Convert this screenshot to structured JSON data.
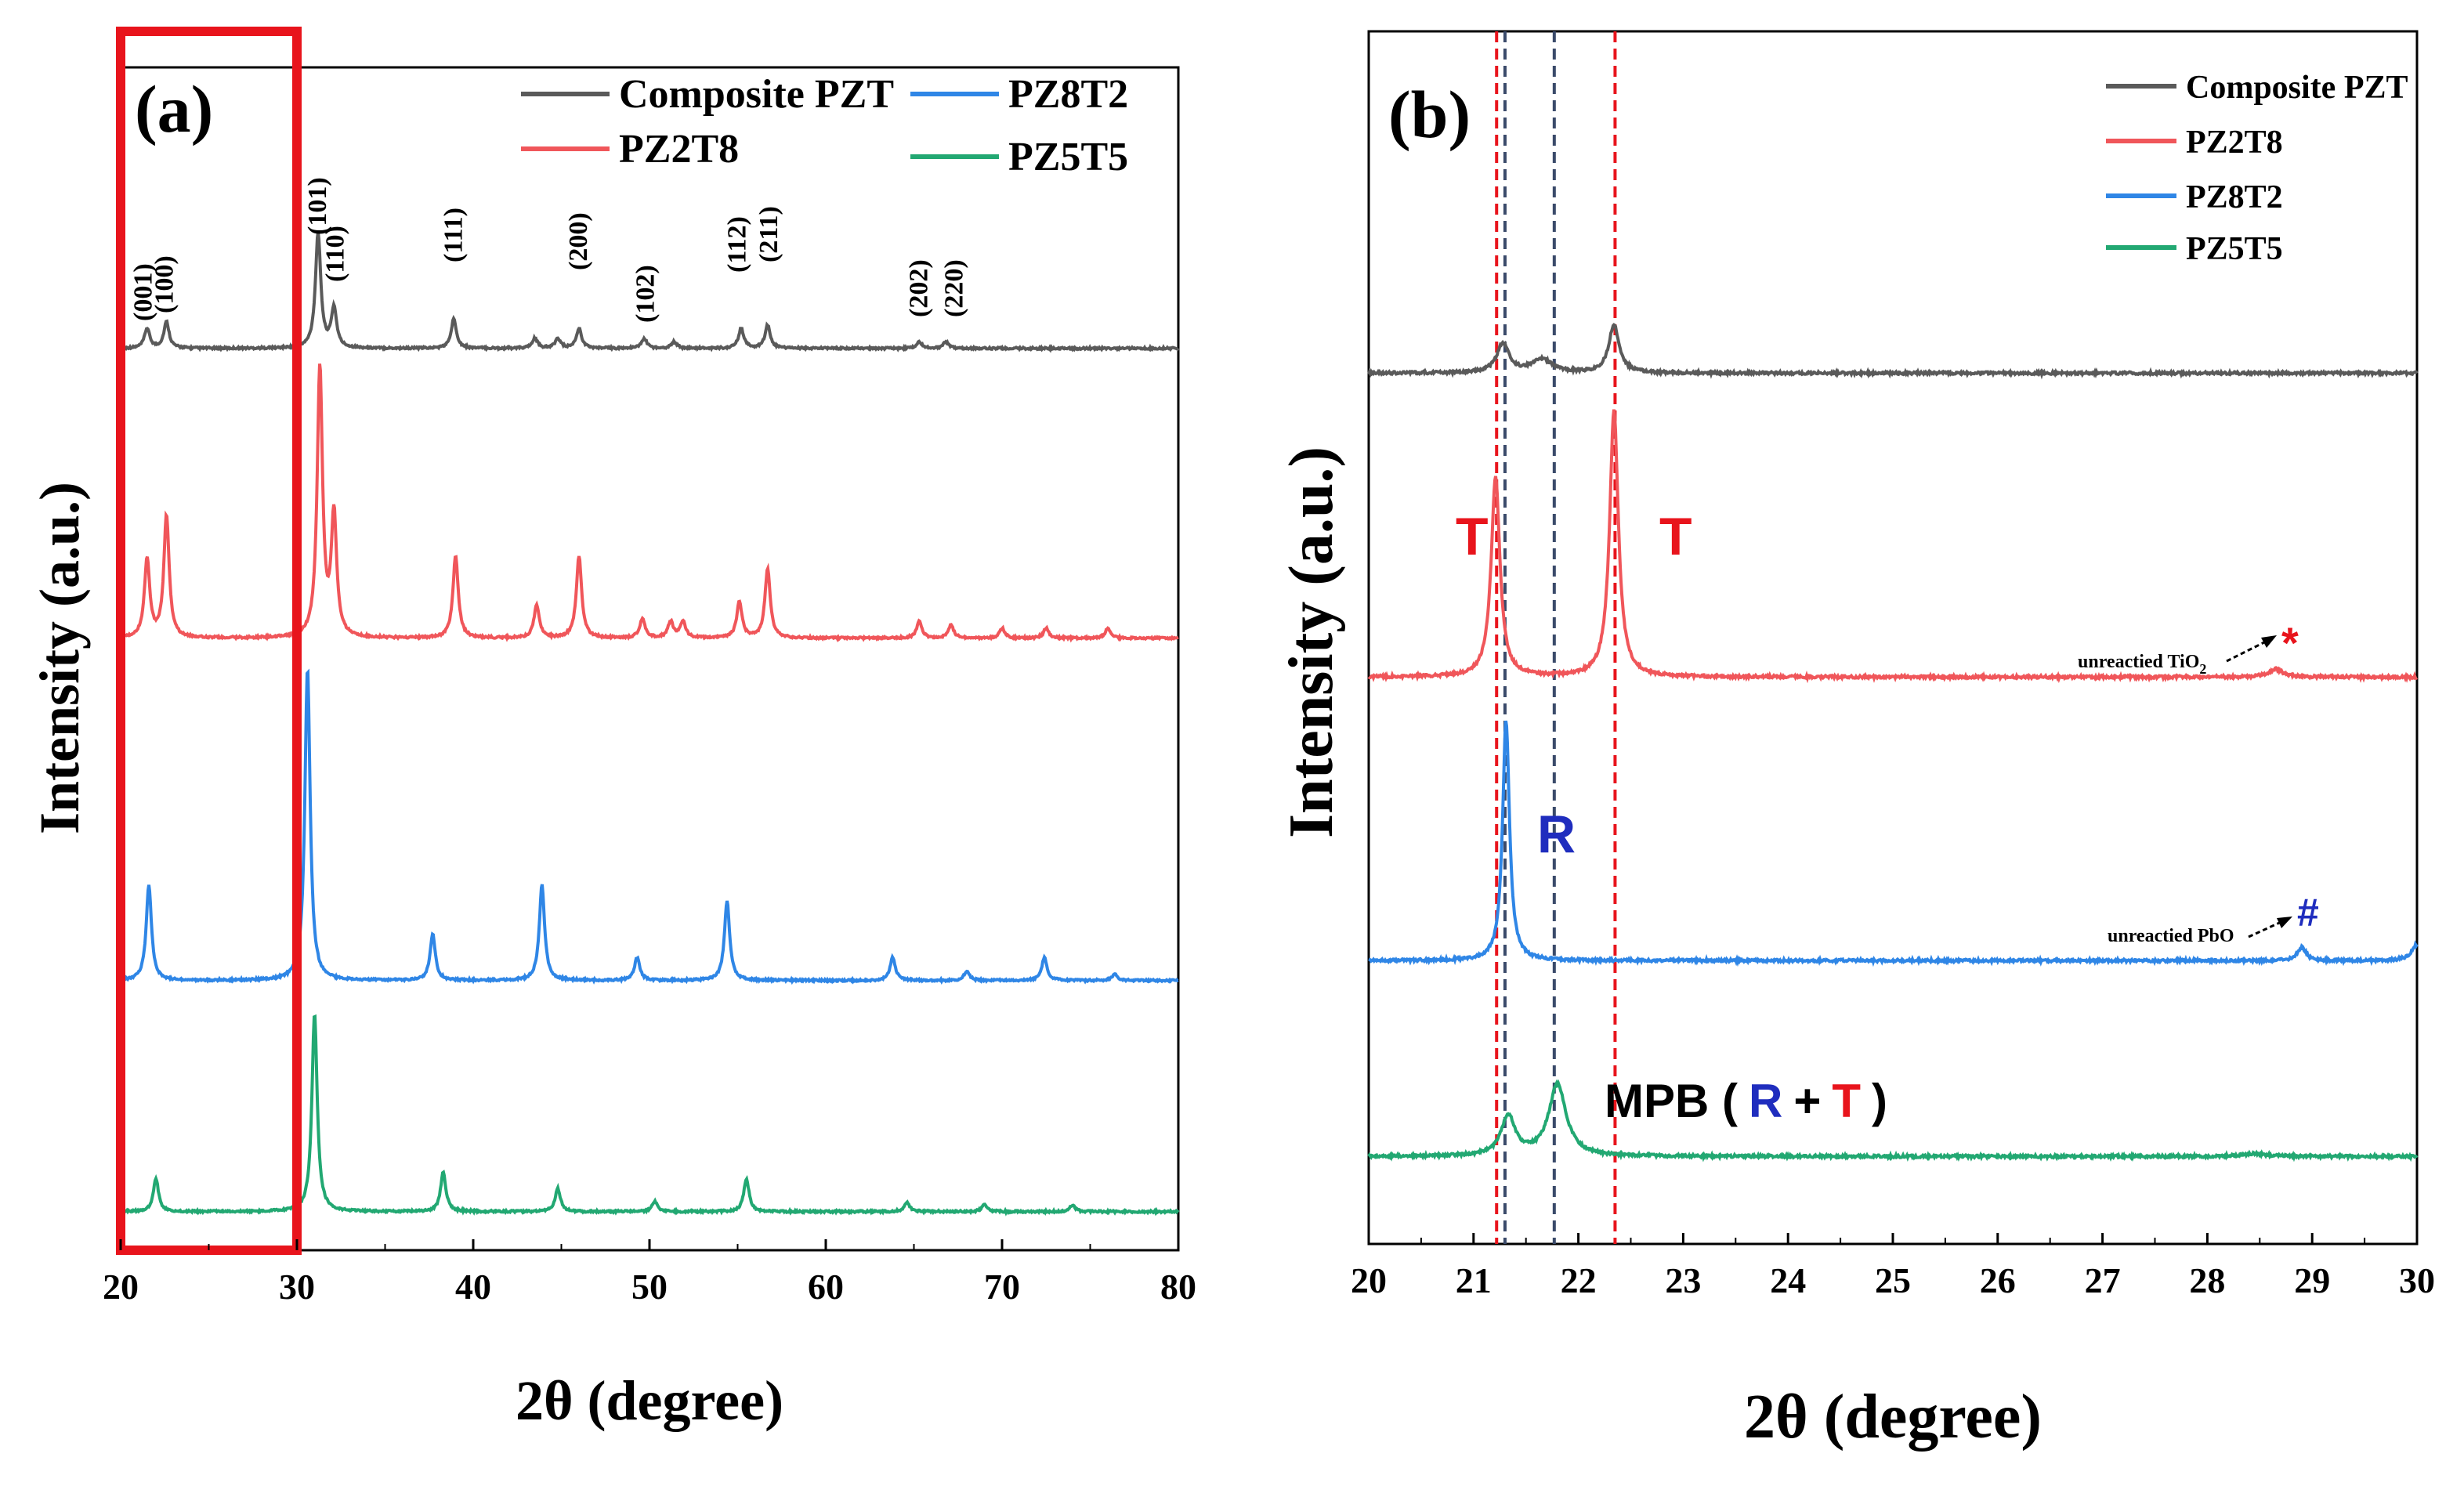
{
  "colors": {
    "composite": "#5a5a5a",
    "pz2t8": "#f0565a",
    "pz8t2": "#2f86e6",
    "pz5t5": "#22a872",
    "red_marker": "#e8141c",
    "blue_marker": "#1f2dbe",
    "dash_blue": "#3a4a6a"
  },
  "chart_data": [
    {
      "panel": "a",
      "type": "line",
      "panel_label": "(a)",
      "xlabel": "2θ (degree)",
      "ylabel": "Intensity (a.u.)",
      "xlim": [
        20,
        80
      ],
      "xticks": [
        "20",
        "30",
        "40",
        "50",
        "60",
        "70",
        "80"
      ],
      "legend": [
        {
          "name": "Composite PZT",
          "color_key": "composite"
        },
        {
          "name": "PZ8T2",
          "color_key": "pz8t2"
        },
        {
          "name": "PZ2T8",
          "color_key": "pz2t8"
        },
        {
          "name": "PZ5T5",
          "color_key": "pz5t5"
        }
      ],
      "highlight_box": {
        "x_range": [
          20,
          30
        ],
        "color": "#e8141c"
      },
      "miller_indices": [
        {
          "label": "(001)",
          "x": 21.3
        },
        {
          "label": "(100)",
          "x": 22.5
        },
        {
          "label": "(101)",
          "x": 31.2
        },
        {
          "label": "(110)",
          "x": 32.2
        },
        {
          "label": "(111)",
          "x": 38.9
        },
        {
          "label": "(200)",
          "x": 46.0
        },
        {
          "label": "(102)",
          "x": 49.8
        },
        {
          "label": "(112)",
          "x": 55.0
        },
        {
          "label": "(211)",
          "x": 56.8
        },
        {
          "label": "(202)",
          "x": 65.3
        },
        {
          "label": "(220)",
          "x": 67.3
        }
      ],
      "series": [
        {
          "name": "Composite PZT",
          "color_key": "composite",
          "offset": 3.0,
          "peaks": [
            [
              21.5,
              0.06
            ],
            [
              22.6,
              0.08
            ],
            [
              31.2,
              0.35
            ],
            [
              32.1,
              0.12
            ],
            [
              38.9,
              0.09
            ],
            [
              43.5,
              0.03
            ],
            [
              44.8,
              0.03
            ],
            [
              46.0,
              0.06
            ],
            [
              49.7,
              0.03
            ],
            [
              51.4,
              0.02
            ],
            [
              55.2,
              0.06
            ],
            [
              56.7,
              0.07
            ],
            [
              65.3,
              0.02
            ],
            [
              66.8,
              0.02
            ]
          ]
        },
        {
          "name": "PZ2T8",
          "color_key": "pz2t8",
          "offset": 2.1,
          "peaks": [
            [
              21.5,
              0.24
            ],
            [
              22.6,
              0.37
            ],
            [
              31.3,
              0.82
            ],
            [
              32.1,
              0.37
            ],
            [
              39.0,
              0.25
            ],
            [
              43.6,
              0.1
            ],
            [
              46.0,
              0.25
            ],
            [
              49.6,
              0.06
            ],
            [
              51.2,
              0.05
            ],
            [
              51.9,
              0.05
            ],
            [
              55.1,
              0.11
            ],
            [
              56.7,
              0.21
            ],
            [
              65.3,
              0.05
            ],
            [
              67.1,
              0.04
            ],
            [
              70.0,
              0.03
            ],
            [
              72.5,
              0.03
            ],
            [
              76.0,
              0.03
            ]
          ]
        },
        {
          "name": "PZ8T2",
          "color_key": "pz8t2",
          "offset": 1.0,
          "peaks": [
            [
              21.6,
              0.29
            ],
            [
              30.6,
              0.95
            ],
            [
              37.7,
              0.14
            ],
            [
              43.9,
              0.29
            ],
            [
              49.3,
              0.07
            ],
            [
              54.4,
              0.24
            ],
            [
              63.8,
              0.07
            ],
            [
              68.0,
              0.03
            ],
            [
              72.4,
              0.07
            ],
            [
              76.4,
              0.02
            ]
          ]
        },
        {
          "name": "PZ5T5",
          "color_key": "pz5t5",
          "offset": 0.0,
          "peaks": [
            [
              22.0,
              0.1
            ],
            [
              31.0,
              0.6
            ],
            [
              38.3,
              0.12
            ],
            [
              44.8,
              0.07
            ],
            [
              50.3,
              0.03
            ],
            [
              55.5,
              0.1
            ],
            [
              64.6,
              0.03
            ],
            [
              69.0,
              0.02
            ],
            [
              74.0,
              0.02
            ]
          ]
        }
      ]
    },
    {
      "panel": "b",
      "type": "line",
      "panel_label": "(b)",
      "xlabel": "2θ (degree)",
      "ylabel": "Intensity (a.u.)",
      "xlim": [
        20,
        30
      ],
      "xticks": [
        "20",
        "21",
        "22",
        "23",
        "24",
        "25",
        "26",
        "27",
        "28",
        "29",
        "30"
      ],
      "legend": [
        {
          "name": "Composite PZT",
          "color_key": "composite"
        },
        {
          "name": "PZ2T8",
          "color_key": "pz2t8"
        },
        {
          "name": "PZ8T2",
          "color_key": "pz8t2"
        },
        {
          "name": "PZ5T5",
          "color_key": "pz5t5"
        }
      ],
      "reference_lines": [
        {
          "x": 21.22,
          "color_key": "red_marker"
        },
        {
          "x": 21.3,
          "color_key": "dash_blue"
        },
        {
          "x": 21.77,
          "color_key": "dash_blue"
        },
        {
          "x": 22.35,
          "color_key": "red_marker"
        }
      ],
      "annotations": {
        "t_left": "T",
        "t_right": "T",
        "r": "R",
        "unreacted_tio2": "unreactied TiO",
        "unreacted_tio2_sub": "2",
        "star": "*",
        "unreacted_pbo": "unreactied PbO",
        "hash": "#",
        "mpb_prefix": "MPB (",
        "mpb_r": "R",
        "mpb_plus": "+",
        "mpb_t": "T",
        "mpb_close": ")"
      },
      "series": [
        {
          "name": "Composite PZT",
          "color_key": "composite",
          "offset": 3.05,
          "peaks": [
            [
              21.28,
              0.11,
              0.07
            ],
            [
              21.65,
              0.05,
              0.12
            ],
            [
              22.34,
              0.18,
              0.06
            ]
          ]
        },
        {
          "name": "PZ2T8",
          "color_key": "pz2t8",
          "offset": 2.02,
          "peaks": [
            [
              21.21,
              0.75,
              0.05
            ],
            [
              22.34,
              1.0,
              0.05
            ],
            [
              28.65,
              0.03,
              0.08
            ]
          ]
        },
        {
          "name": "PZ8T2",
          "color_key": "pz8t2",
          "offset": 1.05,
          "peaks": [
            [
              21.31,
              0.9,
              0.04
            ],
            [
              28.9,
              0.05,
              0.05
            ],
            [
              30.0,
              0.06,
              0.06
            ]
          ]
        },
        {
          "name": "PZ5T5",
          "color_key": "pz5t5",
          "offset": 0.0,
          "peaks": [
            [
              21.33,
              0.15,
              0.08
            ],
            [
              21.8,
              0.27,
              0.1
            ],
            [
              28.45,
              0.01,
              0.15
            ]
          ]
        }
      ]
    }
  ]
}
